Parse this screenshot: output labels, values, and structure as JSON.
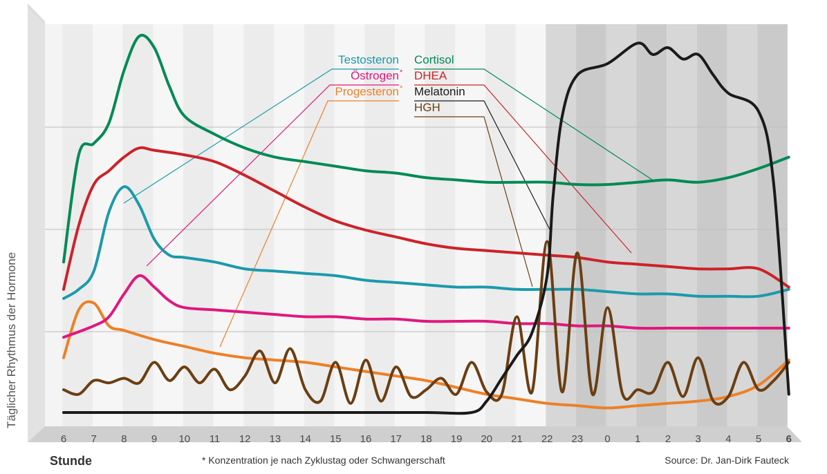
{
  "chart_data": {
    "type": "line",
    "ylabel": "Täglicher Rhythmus der Hormone",
    "xlabel": "Stunde",
    "x_categories": [
      "6",
      "7",
      "8",
      "9",
      "10",
      "11",
      "12",
      "13",
      "14",
      "15",
      "16",
      "17",
      "18",
      "19",
      "20",
      "21",
      "22",
      "23",
      "0",
      "1",
      "2",
      "3",
      "4",
      "5",
      "6"
    ],
    "night_shading": {
      "from": "22",
      "to": "6"
    },
    "grid": true,
    "footnote": "* Konzentration je nach Zyklustag oder Schwangerschaft",
    "source": "Source: Dr. Jan-Dirk Fauteck",
    "series": [
      {
        "name": "Testosteron",
        "color": "#1b9aab",
        "x": [
          6,
          6.5,
          7,
          7.5,
          8,
          8.5,
          9,
          9.5,
          10,
          11,
          12,
          13,
          14,
          15,
          16,
          17,
          18,
          19,
          20,
          21,
          22,
          23,
          24,
          25,
          26,
          27,
          28,
          29,
          30
        ],
        "y": [
          50,
          54,
          62,
          88,
          99,
          91,
          76,
          69,
          68,
          66,
          63,
          62,
          61,
          60,
          58,
          57,
          56,
          55,
          55,
          54,
          54,
          54,
          53,
          52,
          52,
          51,
          51,
          51,
          54
        ]
      },
      {
        "name": "Östrogen*",
        "color": "#e0177e",
        "x": [
          6,
          7,
          7.5,
          8,
          8.5,
          9,
          9.5,
          10,
          11,
          12,
          13,
          14,
          15,
          16,
          17,
          18,
          19,
          20,
          21,
          22,
          23,
          24,
          25,
          26,
          27,
          28,
          29,
          30
        ],
        "y": [
          33,
          38,
          42,
          52,
          60,
          55,
          49,
          46,
          45,
          44,
          43,
          42,
          42,
          41,
          41,
          40,
          40,
          40,
          39,
          39,
          38,
          38,
          37,
          37,
          37,
          37,
          37,
          37
        ]
      },
      {
        "name": "Progesteron*",
        "color": "#ed8026",
        "x": [
          6,
          6.5,
          7,
          7.5,
          8,
          9,
          10,
          11,
          12,
          13,
          14,
          15,
          16,
          17,
          18,
          19,
          20,
          21,
          22,
          23,
          24,
          25,
          26,
          27,
          28,
          29,
          30
        ],
        "y": [
          24,
          45,
          48,
          38,
          36,
          32,
          29,
          26,
          24,
          23,
          22,
          20,
          18,
          16,
          14,
          11,
          8,
          6,
          4,
          3,
          2,
          3,
          4,
          5,
          7,
          12,
          23
        ]
      },
      {
        "name": "Cortisol",
        "color": "#008a55",
        "x": [
          6,
          6.5,
          7,
          7.5,
          8,
          8.5,
          9,
          9.5,
          10,
          11,
          12,
          13,
          14,
          15,
          16,
          17,
          18,
          19,
          20,
          21,
          22,
          23,
          24,
          25,
          26,
          27,
          28,
          29,
          30
        ],
        "y": [
          66,
          113,
          118,
          127,
          150,
          165,
          160,
          143,
          130,
          122,
          116,
          112,
          110,
          108,
          106,
          105,
          103,
          102,
          101,
          101,
          101,
          100,
          100,
          101,
          102,
          101,
          103,
          107,
          112
        ]
      },
      {
        "name": "DHEA",
        "color": "#cc2229",
        "x": [
          6,
          6.5,
          7,
          7.5,
          8,
          8.5,
          9,
          10,
          11,
          12,
          13,
          14,
          15,
          16,
          17,
          18,
          19,
          20,
          21,
          22,
          23,
          24,
          25,
          26,
          27,
          28,
          29,
          30
        ],
        "y": [
          54,
          82,
          100,
          106,
          112,
          116,
          115,
          113,
          110,
          104,
          97,
          90,
          84,
          80,
          77,
          74,
          72,
          71,
          70,
          69,
          68,
          66,
          65,
          64,
          63,
          63,
          63,
          55
        ]
      },
      {
        "name": "Melatonin",
        "color": "#1a1a1a",
        "x": [
          6,
          8,
          10,
          12,
          14,
          16,
          18,
          19.5,
          20,
          20.5,
          21,
          21.5,
          22,
          22.2,
          22.5,
          23,
          24,
          25,
          25.5,
          26,
          26.5,
          27,
          27.5,
          28,
          29,
          29.5,
          30
        ],
        "y": [
          0,
          0,
          0,
          0,
          0,
          0,
          0,
          0,
          5,
          15,
          25,
          35,
          60,
          95,
          130,
          148,
          153,
          162,
          157,
          160,
          155,
          157,
          148,
          140,
          132,
          100,
          8
        ]
      },
      {
        "name": "HGH",
        "color": "#6b3e12",
        "x": [
          6,
          6.5,
          7,
          7.5,
          8,
          8.5,
          9,
          9.5,
          10,
          10.5,
          11,
          11.5,
          12,
          12.5,
          13,
          13.5,
          14,
          14.5,
          15,
          15.5,
          16,
          16.5,
          17,
          17.5,
          18,
          18.5,
          19,
          19.5,
          20,
          20.5,
          21,
          21.5,
          22,
          22.5,
          23,
          23.5,
          24,
          24.5,
          25,
          25.5,
          26,
          26.5,
          27,
          27.5,
          28,
          28.5,
          29,
          29.5,
          30
        ],
        "y": [
          10,
          8,
          14,
          13,
          15,
          13,
          22,
          14,
          20,
          13,
          19,
          10,
          16,
          27,
          13,
          28,
          10,
          5,
          22,
          4,
          23,
          5,
          20,
          7,
          10,
          15,
          8,
          22,
          9,
          8,
          42,
          9,
          75,
          9,
          70,
          8,
          46,
          8,
          10,
          9,
          22,
          7,
          24,
          5,
          7,
          22,
          10,
          14,
          22
        ]
      }
    ],
    "legend": {
      "left": [
        {
          "label": "Testosteron",
          "series": "Testosteron",
          "mark": ""
        },
        {
          "label": "Östrogen",
          "series": "Östrogen*",
          "mark": "*"
        },
        {
          "label": "Progesteron",
          "series": "Progesteron*",
          "mark": "*"
        }
      ],
      "right": [
        {
          "label": "Cortisol",
          "series": "Cortisol"
        },
        {
          "label": "DHEA",
          "series": "DHEA"
        },
        {
          "label": "Melatonin",
          "series": "Melatonin"
        },
        {
          "label": "HGH",
          "series": "HGH"
        }
      ]
    }
  }
}
